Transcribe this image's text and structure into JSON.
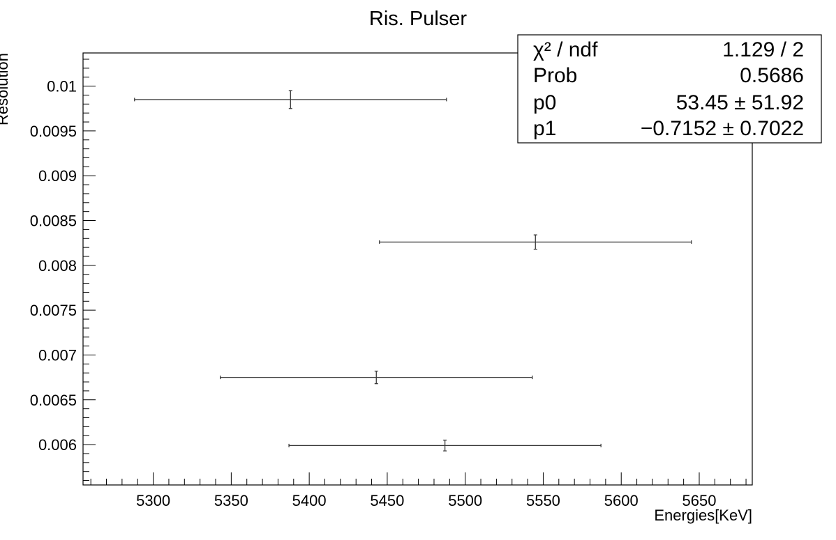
{
  "chart_data": {
    "type": "scatter",
    "title": "Ris. Pulser",
    "xlabel": "Energies[KeV]",
    "ylabel": "Resolution",
    "xlim": [
      5255,
      5684
    ],
    "ylim": [
      0.00555,
      0.01037
    ],
    "x_ticks": [
      5300,
      5350,
      5400,
      5450,
      5500,
      5550,
      5600,
      5650
    ],
    "y_ticks": [
      0.006,
      0.0065,
      0.007,
      0.0075,
      0.008,
      0.0085,
      0.009,
      0.0095,
      0.01
    ],
    "x_tick_labels": [
      "5300",
      "5350",
      "5400",
      "5450",
      "5500",
      "5550",
      "5600",
      "5650"
    ],
    "y_tick_labels": [
      "0.006",
      "0.0065",
      "0.007",
      "0.0075",
      "0.008",
      "0.0085",
      "0.009",
      "0.0095",
      "0.01"
    ],
    "grid": false,
    "series": [
      {
        "points": [
          {
            "x": 5388,
            "y": 0.00985,
            "xerr": 100,
            "yerr": 0.0001
          },
          {
            "x": 5545,
            "y": 0.00826,
            "xerr": 100,
            "yerr": 8e-05
          },
          {
            "x": 5443,
            "y": 0.00675,
            "xerr": 100,
            "yerr": 7e-05
          },
          {
            "x": 5487,
            "y": 0.00599,
            "xerr": 100,
            "yerr": 6e-05
          }
        ]
      }
    ],
    "fit": {
      "function": "pol1",
      "p0": 53.45,
      "p1": -0.7152,
      "color": "#ff0000"
    }
  },
  "stats_box": {
    "rows": [
      {
        "label": "χ² / ndf",
        "value": "1.129 / 2"
      },
      {
        "label": "Prob",
        "value": "0.5686"
      },
      {
        "label": "p0",
        "value": "53.45 ± 51.92"
      },
      {
        "label": "p1",
        "value": "−0.7152 ± 0.7022"
      }
    ]
  },
  "colors": {
    "points": "#3a3a3a",
    "fit_line": "#ff0000",
    "frame": "#000000"
  }
}
